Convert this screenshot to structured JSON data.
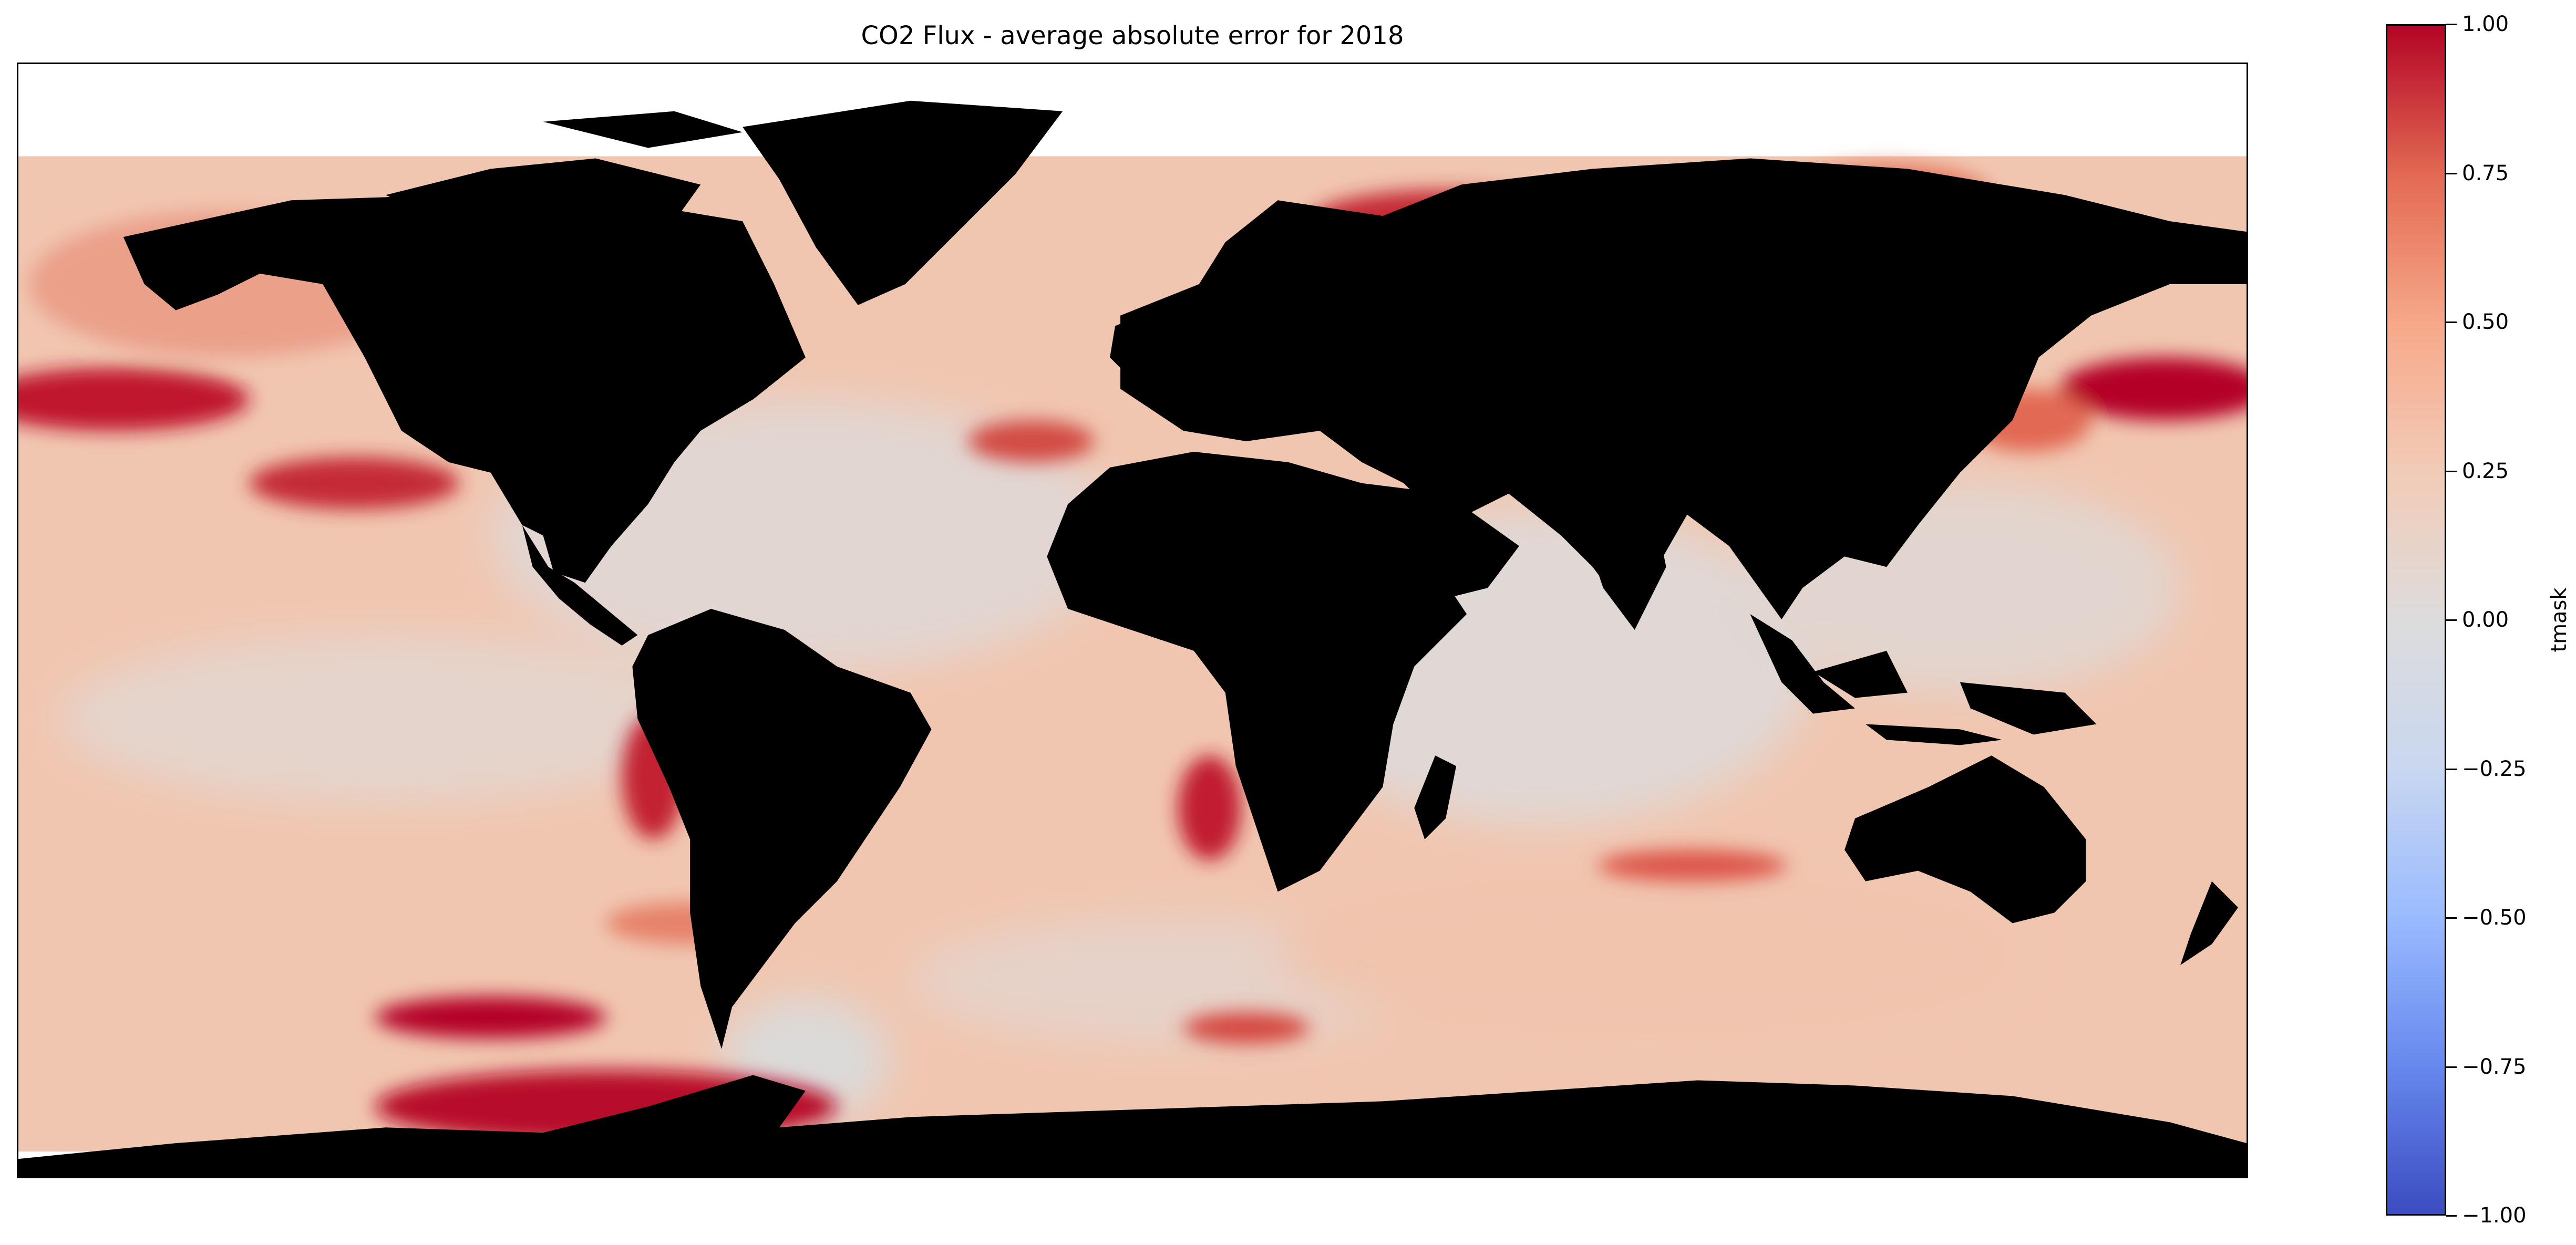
{
  "title": "CO2 Flux - average absolute error for 2018",
  "colorbar": {
    "label": "tmask",
    "min": -1.0,
    "max": 1.0,
    "ticks": [
      "1.00",
      "0.75",
      "0.50",
      "0.25",
      "0.00",
      "−0.25",
      "−0.50",
      "−0.75",
      "−1.00"
    ],
    "tick_values": [
      1.0,
      0.75,
      0.5,
      0.25,
      0.0,
      -0.25,
      -0.5,
      -0.75,
      -1.0
    ],
    "colormap": "coolwarm",
    "colors": [
      "#3b4cc0",
      "#6788ee",
      "#9abbff",
      "#c9d7f0",
      "#dddcdc",
      "#f2cbb7",
      "#f7a889",
      "#e26952",
      "#b40426"
    ]
  },
  "map": {
    "projection": "plate-carree",
    "land_color": "#000000",
    "ocean_base_color": "#f2cbb7",
    "no_data_color": "#ffffff",
    "high_error_regions": [
      "North Pacific",
      "Southern Ocean south of South America",
      "Benguela upwelling",
      "Peru upwelling",
      "Kuroshio",
      "Barents Sea",
      "East Pacific"
    ]
  }
}
